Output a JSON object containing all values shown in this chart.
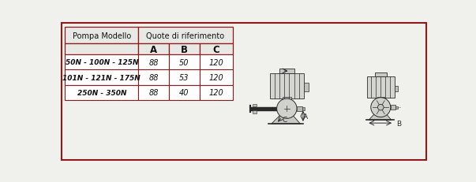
{
  "fig_width": 6.03,
  "fig_height": 2.32,
  "dpi": 100,
  "bg_color": "#f0f0ec",
  "border_color": "#8B1A1A",
  "border_lw": 1.5,
  "table": {
    "header1": "Pompa Modello",
    "header2": "Quote di riferimento",
    "col_headers": [
      "A",
      "B",
      "C"
    ],
    "rows": [
      {
        "model": "50N - 100N - 125N",
        "A": "88",
        "B": "50",
        "C": "120"
      },
      {
        "model": "101N - 121N - 175N",
        "A": "88",
        "B": "53",
        "C": "120"
      },
      {
        "model": "250N - 350N",
        "A": "88",
        "B": "40",
        "C": "120"
      }
    ],
    "table_border": "#8B1A1A",
    "inner_border": "#8B1A1A",
    "header_bg": "#e8e8e4",
    "cell_bg": "#ffffff",
    "model_fontsize": 6.5,
    "value_fontsize": 7.0,
    "header_fontsize": 7.0,
    "col_header_fontsize": 8.5
  }
}
